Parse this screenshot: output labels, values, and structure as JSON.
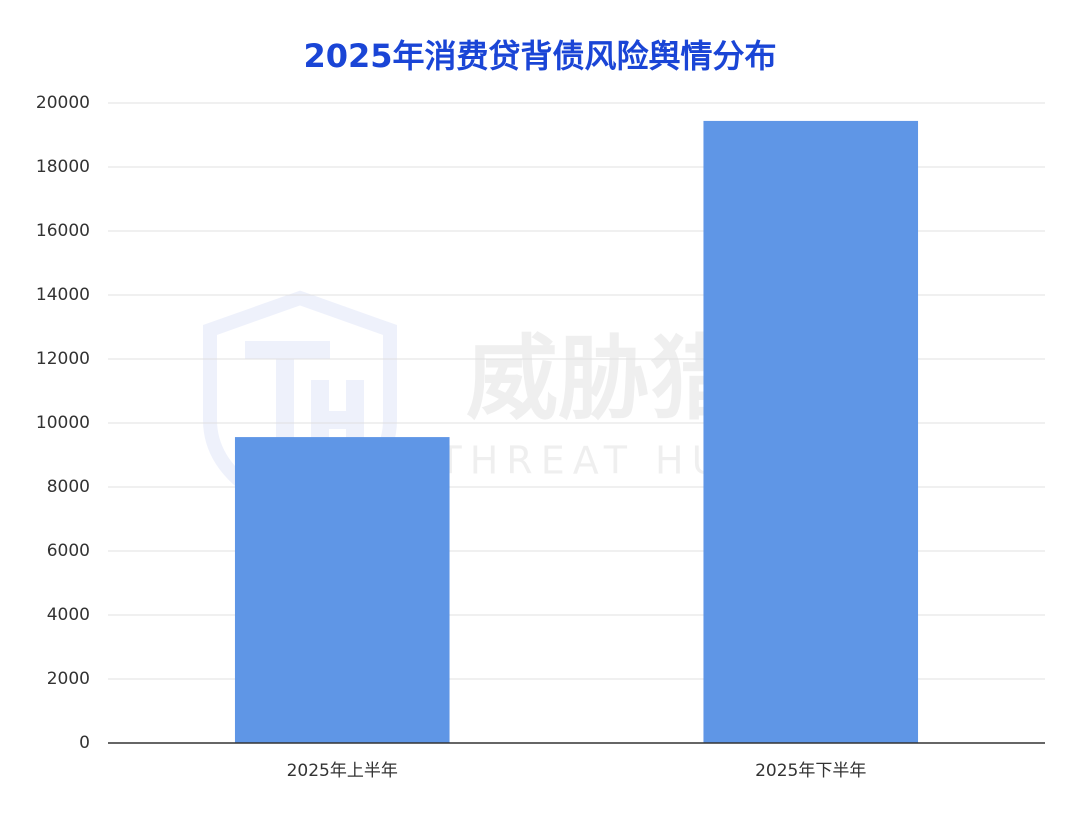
{
  "chart_data": {
    "type": "bar",
    "title": "2025年消费贷背债风险舆情分布",
    "categories": [
      "2025年上半年",
      "2025年下半年"
    ],
    "values": [
      9560,
      19440
    ],
    "color": "#5f96e6",
    "ylim": [
      0,
      20000
    ],
    "yticks": [
      0,
      2000,
      4000,
      6000,
      8000,
      10000,
      12000,
      14000,
      16000,
      18000,
      20000
    ],
    "grid": true,
    "watermark": "威胁猎人",
    "watermark_subtext": "THREAT HUNTER"
  }
}
